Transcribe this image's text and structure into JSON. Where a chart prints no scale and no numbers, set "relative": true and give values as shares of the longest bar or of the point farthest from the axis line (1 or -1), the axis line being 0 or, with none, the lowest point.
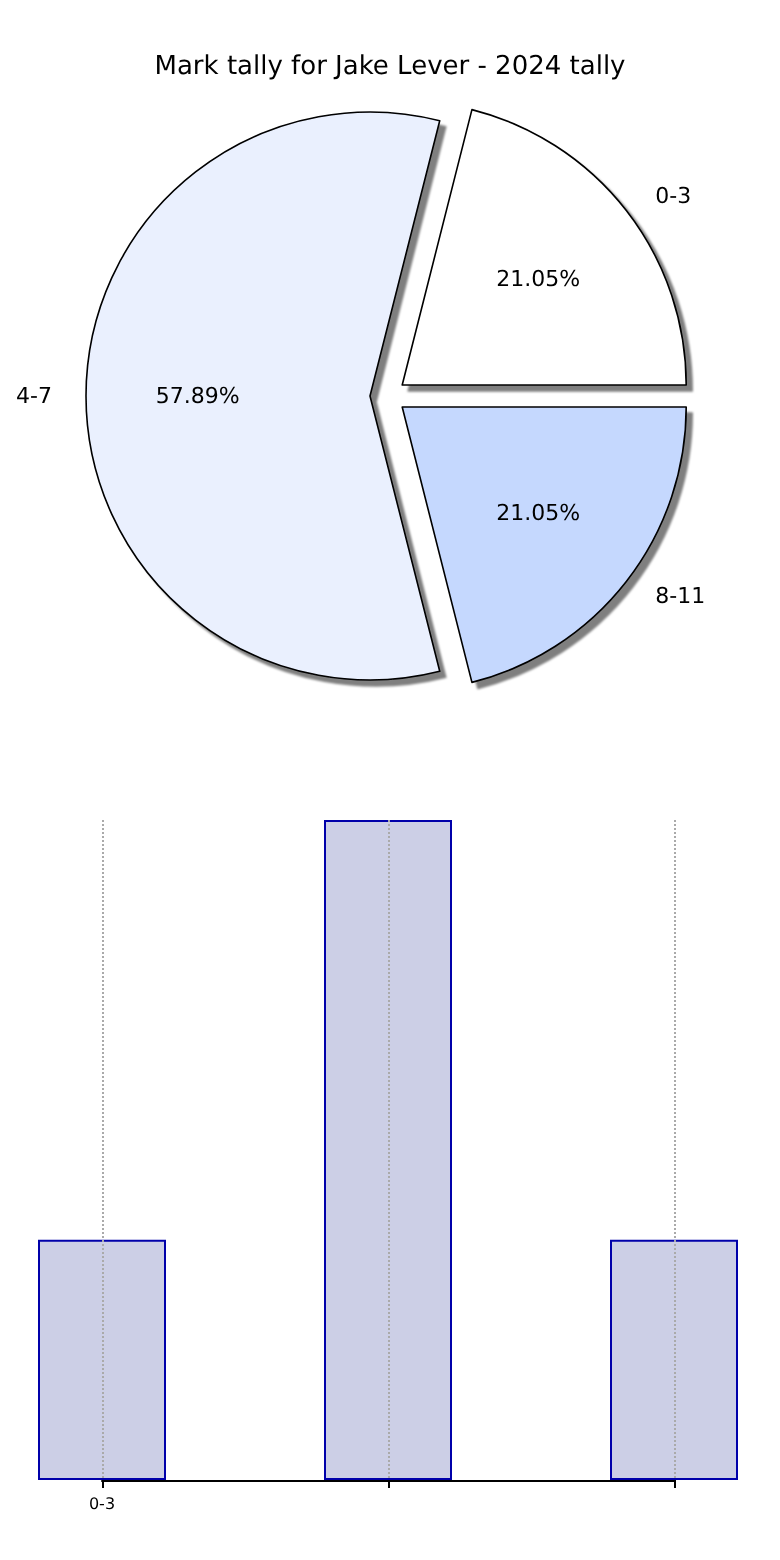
{
  "chart_data": [
    {
      "type": "pie",
      "title": "Mark tally for Jake Lever - 2024 tally",
      "categories": [
        "0-3",
        "4-7",
        "8-11"
      ],
      "values": [
        21.05,
        57.89,
        21.05
      ],
      "colors": [
        "#ffffff",
        "#eaf0fe",
        "#c5d8fe"
      ],
      "value_labels": [
        "21.05%",
        "57.89%",
        "21.05%"
      ]
    },
    {
      "type": "bar",
      "categories": [
        "0-3",
        null,
        null
      ],
      "values": [
        0.364,
        1,
        0.364
      ],
      "relative": true,
      "color": "#cccfe6",
      "grid": "x"
    }
  ]
}
